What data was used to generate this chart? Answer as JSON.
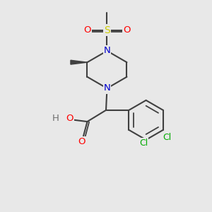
{
  "bg_color": "#e8e8e8",
  "atom_colors": {
    "C": "#404040",
    "N": "#0000cc",
    "O": "#ff0000",
    "S": "#cccc00",
    "Cl": "#00aa00",
    "H": "#707070"
  },
  "bond_color": "#404040",
  "bond_lw": 1.5,
  "double_lw": 1.3,
  "font_size": 9.5
}
